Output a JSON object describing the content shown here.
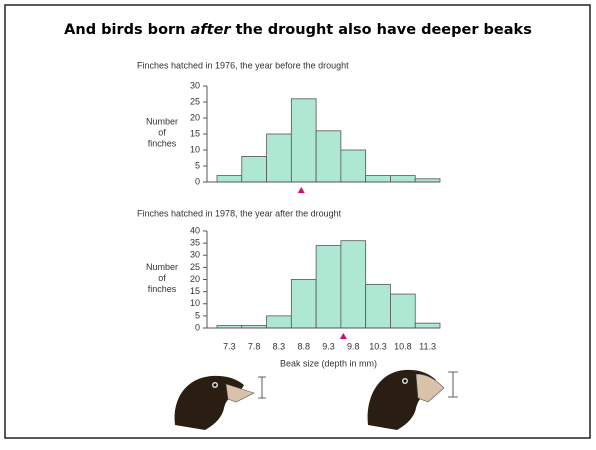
{
  "title_parts": [
    "And birds born ",
    "after",
    " the drought also have deeper beaks"
  ],
  "chart_data": [
    {
      "type": "histogram",
      "title": "Finches hatched in 1976, the year before the drought",
      "ylabel_lines": [
        "Number",
        "of",
        "finches"
      ],
      "bins": [
        7.05,
        7.55,
        8.05,
        8.55,
        9.05,
        9.55,
        10.05,
        10.55,
        11.05,
        11.55
      ],
      "values": [
        2,
        8,
        15,
        26,
        16,
        10,
        2,
        2,
        1
      ],
      "color": "#aee8d2",
      "xlim": [
        7.05,
        11.55
      ],
      "ylim": [
        0,
        30
      ],
      "yticks": [
        0,
        5,
        10,
        15,
        20,
        25,
        30
      ],
      "marker_x": 8.75,
      "marker_color": "#d0106a"
    },
    {
      "type": "histogram",
      "title": "Finches hatched in 1978, the year after the drought",
      "ylabel_lines": [
        "Number",
        "of",
        "finches"
      ],
      "xlabel": "Beak size (depth in mm)",
      "bins": [
        7.05,
        7.55,
        8.05,
        8.55,
        9.05,
        9.55,
        10.05,
        10.55,
        11.05,
        11.55
      ],
      "values": [
        1,
        1,
        5,
        20,
        34,
        36,
        18,
        14,
        2
      ],
      "color": "#aee8d2",
      "xlim": [
        7.05,
        11.55
      ],
      "ylim": [
        0,
        40
      ],
      "yticks": [
        0,
        5,
        10,
        15,
        20,
        25,
        30,
        35,
        40
      ],
      "xticks": [
        7.3,
        7.8,
        8.3,
        8.8,
        9.3,
        9.8,
        10.3,
        10.8,
        11.3
      ],
      "marker_x": 9.6,
      "marker_color": "#d0106a"
    }
  ]
}
